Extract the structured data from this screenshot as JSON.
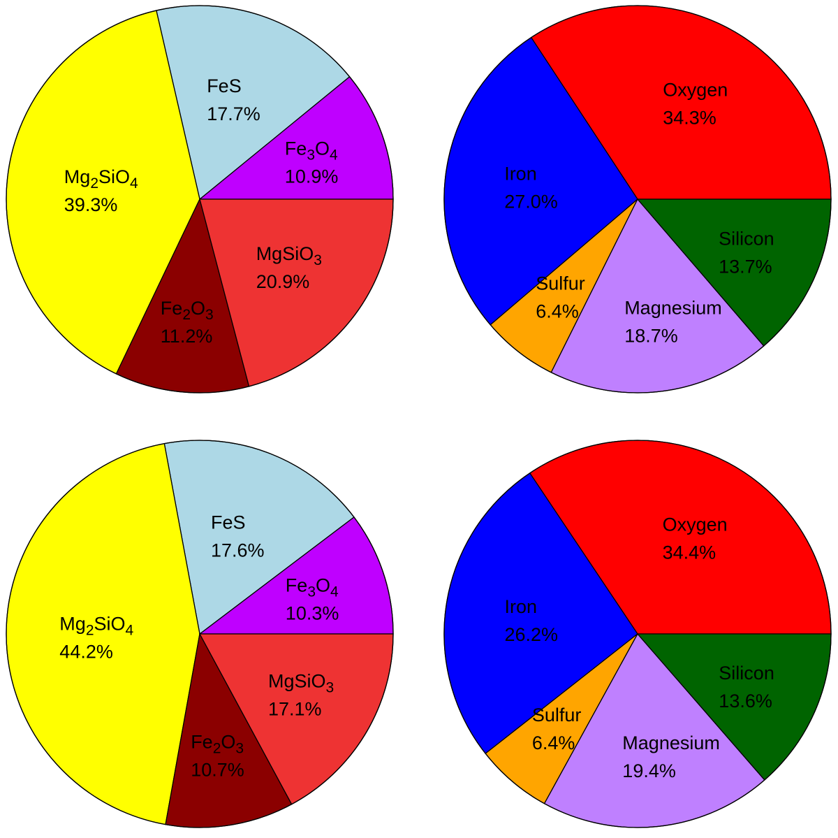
{
  "chart_data": [
    {
      "type": "pie",
      "title": "",
      "slices": [
        {
          "name": "Mg",
          "sub1": "2",
          "mid": "SiO",
          "sub2": "4",
          "value": 39.3,
          "label": "39.3%",
          "color": "#ffff00"
        },
        {
          "name": "FeS",
          "value": 17.7,
          "label": "17.7%",
          "color": "#add8e6"
        },
        {
          "name": "Fe",
          "sub1": "3",
          "mid": "O",
          "sub2": "4",
          "value": 10.9,
          "label": "10.9%",
          "color": "#bf00ff"
        },
        {
          "name": "MgSiO",
          "sub1": "3",
          "value": 20.9,
          "label": "20.9%",
          "color": "#ee3333"
        },
        {
          "name": "Fe",
          "sub1": "2",
          "mid": "O",
          "sub2": "3",
          "value": 11.2,
          "label": "11.2%",
          "color": "#8b0000"
        }
      ]
    },
    {
      "type": "pie",
      "title": "",
      "slices": [
        {
          "name": "Oxygen",
          "value": 34.3,
          "label": "34.3%",
          "color": "#ff0000"
        },
        {
          "name": "Silicon",
          "value": 13.7,
          "label": "13.7%",
          "color": "#006400"
        },
        {
          "name": "Magnesium",
          "value": 18.7,
          "label": "18.7%",
          "color": "#bf80ff"
        },
        {
          "name": "Sulfur",
          "value": 6.4,
          "label": "6.4%",
          "color": "#ffa500"
        },
        {
          "name": "Iron",
          "value": 27.0,
          "label": "27.0%",
          "color": "#0000ff"
        }
      ]
    },
    {
      "type": "pie",
      "title": "",
      "slices": [
        {
          "name": "Mg",
          "sub1": "2",
          "mid": "SiO",
          "sub2": "4",
          "value": 44.2,
          "label": "44.2%",
          "color": "#ffff00"
        },
        {
          "name": "FeS",
          "value": 17.6,
          "label": "17.6%",
          "color": "#add8e6"
        },
        {
          "name": "Fe",
          "sub1": "3",
          "mid": "O",
          "sub2": "4",
          "value": 10.3,
          "label": "10.3%",
          "color": "#bf00ff"
        },
        {
          "name": "MgSiO",
          "sub1": "3",
          "value": 17.1,
          "label": "17.1%",
          "color": "#ee3333"
        },
        {
          "name": "Fe",
          "sub1": "2",
          "mid": "O",
          "sub2": "3",
          "value": 10.7,
          "label": "10.7%",
          "color": "#8b0000"
        }
      ]
    },
    {
      "type": "pie",
      "title": "",
      "slices": [
        {
          "name": "Oxygen",
          "value": 34.4,
          "label": "34.4%",
          "color": "#ff0000"
        },
        {
          "name": "Silicon",
          "value": 13.6,
          "label": "13.6%",
          "color": "#006400"
        },
        {
          "name": "Magnesium",
          "value": 19.4,
          "label": "19.4%",
          "color": "#bf80ff"
        },
        {
          "name": "Sulfur",
          "value": 6.4,
          "label": "6.4%",
          "color": "#ffa500"
        },
        {
          "name": "Iron",
          "value": 26.2,
          "label": "26.2%",
          "color": "#0000ff"
        }
      ]
    }
  ]
}
